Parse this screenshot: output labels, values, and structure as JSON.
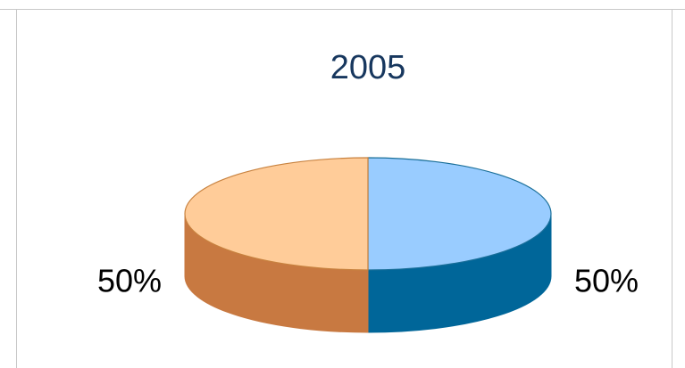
{
  "chart_data": {
    "type": "pie",
    "title": "2005",
    "three_d": true,
    "values": [
      50,
      50
    ],
    "value_labels": [
      "50%",
      "50%"
    ],
    "colors": [
      "#99ccff",
      "#ffcc99"
    ],
    "side_colors": [
      "#006699",
      "#c87941"
    ],
    "edge_colors": [
      "#1a6f99",
      "#c8823f"
    ]
  }
}
